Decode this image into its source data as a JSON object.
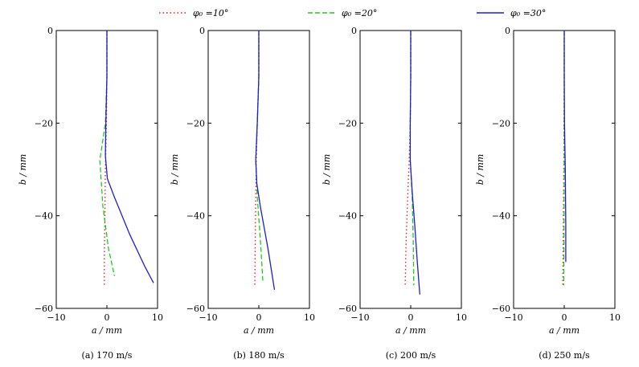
{
  "legend": {
    "placement": "top",
    "entries": [
      {
        "label": "φ₀ =10°",
        "color": "#e41a1c",
        "style": "dotted"
      },
      {
        "label": "φ₀ =20°",
        "color": "#22c822",
        "style": "dashed"
      },
      {
        "label": "φ₀ =30°",
        "color": "#1f1fd0",
        "style": "solid"
      }
    ]
  },
  "chart_data": [
    {
      "type": "line",
      "caption": "(a)  170 m/s",
      "xlabel": "a / mm",
      "ylabel": "b / mm",
      "xlim": [
        -10,
        10
      ],
      "ylim": [
        -60,
        0
      ],
      "xticks": [
        "−10",
        "0",
        "10"
      ],
      "yticks": [
        "0",
        "−20",
        "−40",
        "−60"
      ],
      "grid": false,
      "series": [
        {
          "name": "φ₀ =10°",
          "x": [
            0,
            0,
            -0.1,
            -0.3,
            -0.4,
            -0.5,
            -0.5
          ],
          "y": [
            0,
            -10,
            -20,
            -30,
            -40,
            -50,
            -55
          ]
        },
        {
          "name": "φ₀ =20°",
          "x": [
            0,
            0,
            -0.3,
            -1.4,
            -0.8,
            0.3,
            1.5
          ],
          "y": [
            0,
            -10,
            -20,
            -28,
            -38,
            -47,
            -53
          ]
        },
        {
          "name": "φ₀ =30°",
          "x": [
            0,
            0,
            -0.2,
            -0.3,
            0.1,
            1.5,
            4.5,
            7.5,
            9.2
          ],
          "y": [
            0,
            -10,
            -20,
            -27,
            -32,
            -36,
            -44,
            -51,
            -54.5
          ]
        }
      ]
    },
    {
      "type": "line",
      "caption": "(b)  180 m/s",
      "xlabel": "a / mm",
      "ylabel": "b / mm",
      "xlim": [
        -10,
        10
      ],
      "ylim": [
        -60,
        0
      ],
      "xticks": [
        "−10",
        "0",
        "10"
      ],
      "yticks": [
        "0",
        "−20",
        "−40",
        "−60"
      ],
      "grid": false,
      "series": [
        {
          "name": "φ₀ =10°",
          "x": [
            0,
            0,
            -0.3,
            -0.5,
            -0.6,
            -0.7,
            -0.8
          ],
          "y": [
            0,
            -10,
            -20,
            -28,
            -35,
            -45,
            -55
          ]
        },
        {
          "name": "φ₀ =20°",
          "x": [
            0,
            0,
            -0.3,
            -0.6,
            -0.3,
            0.3,
            0.8
          ],
          "y": [
            0,
            -10,
            -20,
            -28,
            -36,
            -45,
            -54
          ]
        },
        {
          "name": "φ₀ =30°",
          "x": [
            0,
            0,
            -0.3,
            -0.6,
            -0.4,
            0.3,
            1.8,
            3.1
          ],
          "y": [
            0,
            -10,
            -20,
            -28,
            -33,
            -38,
            -47,
            -56
          ]
        }
      ]
    },
    {
      "type": "line",
      "caption": "(c)  200 m/s",
      "xlabel": "a / mm",
      "ylabel": "b / mm",
      "xlim": [
        -10,
        10
      ],
      "ylim": [
        -60,
        0
      ],
      "xticks": [
        "−10",
        "0",
        "10"
      ],
      "yticks": [
        "0",
        "−20",
        "−40",
        "−60"
      ],
      "grid": false,
      "series": [
        {
          "name": "φ₀ =10°",
          "x": [
            0,
            0,
            -0.1,
            -0.3,
            -0.6,
            -0.9,
            -1.1
          ],
          "y": [
            0,
            -10,
            -20,
            -28,
            -36,
            -45,
            -55
          ]
        },
        {
          "name": "φ₀ =20°",
          "x": [
            0,
            0,
            -0.1,
            -0.1,
            0.3,
            0.5,
            0.6
          ],
          "y": [
            0,
            -10,
            -20,
            -28,
            -36,
            -45,
            -55
          ]
        },
        {
          "name": "φ₀ =30°",
          "x": [
            0,
            0,
            -0.1,
            -0.1,
            0.3,
            0.8,
            1.3,
            1.8
          ],
          "y": [
            0,
            -10,
            -20,
            -28,
            -35,
            -42,
            -50,
            -57
          ]
        }
      ]
    },
    {
      "type": "line",
      "caption": "(d)  250 m/s",
      "xlabel": "a / mm",
      "ylabel": "b / mm",
      "xlim": [
        -10,
        10
      ],
      "ylim": [
        -60,
        0
      ],
      "xticks": [
        "−10",
        "0",
        "10"
      ],
      "yticks": [
        "0",
        "−20",
        "−40",
        "−60"
      ],
      "grid": false,
      "series": [
        {
          "name": "φ₀ =10°",
          "x": [
            0,
            0,
            -0.05,
            -0.1,
            -0.2,
            -0.3
          ],
          "y": [
            0,
            -10,
            -20,
            -30,
            -45,
            -55
          ]
        },
        {
          "name": "φ₀ =20°",
          "x": [
            0,
            0,
            0,
            0,
            -0.05,
            -0.1
          ],
          "y": [
            0,
            -10,
            -20,
            -30,
            -45,
            -55
          ]
        },
        {
          "name": "φ₀ =30°",
          "x": [
            0,
            0,
            0.05,
            0.2,
            0.3,
            0.3
          ],
          "y": [
            0,
            -10,
            -20,
            -30,
            -42,
            -50
          ]
        }
      ]
    }
  ]
}
